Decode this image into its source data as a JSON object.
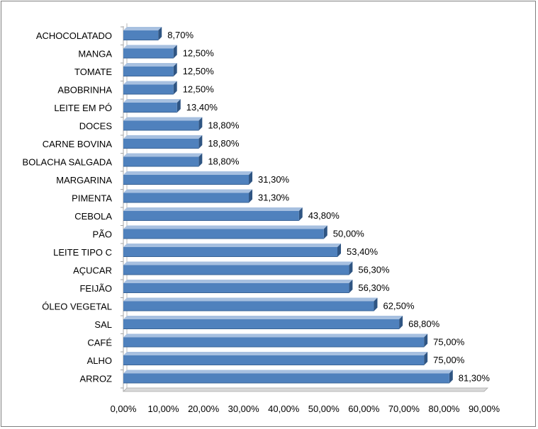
{
  "chart_data": {
    "type": "bar",
    "orientation": "horizontal",
    "categories": [
      "ACHOCOLATADO",
      "MANGA",
      "TOMATE",
      "ABOBRINHA",
      "LEITE EM PÓ",
      "DOCES",
      "CARNE BOVINA",
      "BOLACHA SALGADA",
      "MARGARINA",
      "PIMENTA",
      "CEBOLA",
      "PÃO",
      "LEITE TIPO C",
      "AÇUCAR",
      "FEIJÃO",
      "ÓLEO VEGETAL",
      "SAL",
      "CAFÉ",
      "ALHO",
      "ARROZ"
    ],
    "values": [
      8.7,
      12.5,
      12.5,
      12.5,
      13.4,
      18.8,
      18.8,
      18.8,
      31.3,
      31.3,
      43.8,
      50.0,
      53.4,
      56.3,
      56.3,
      62.5,
      68.8,
      75.0,
      75.0,
      81.3
    ],
    "value_labels": [
      "8,70%",
      "12,50%",
      "12,50%",
      "12,50%",
      "13,40%",
      "18,80%",
      "18,80%",
      "18,80%",
      "31,30%",
      "31,30%",
      "43,80%",
      "50,00%",
      "53,40%",
      "56,30%",
      "56,30%",
      "62,50%",
      "68,80%",
      "75,00%",
      "75,00%",
      "81,30%"
    ],
    "x_ticks": [
      0,
      10,
      20,
      30,
      40,
      50,
      60,
      70,
      80,
      90
    ],
    "x_tick_labels": [
      "0,00%",
      "10,00%",
      "20,00%",
      "30,00%",
      "40,00%",
      "50,00%",
      "60,00%",
      "70,00%",
      "80,00%",
      "90,00%"
    ],
    "xlim": [
      0,
      90
    ],
    "title": "",
    "xlabel": "",
    "ylabel": "",
    "grid": false,
    "legend": "none",
    "colors": {
      "bar_front": "#4f81bd",
      "bar_top": "#a7c0e0",
      "bar_side": "#2f5583",
      "axis": "#a6a6a6",
      "floor": "#d9d9d9"
    }
  }
}
